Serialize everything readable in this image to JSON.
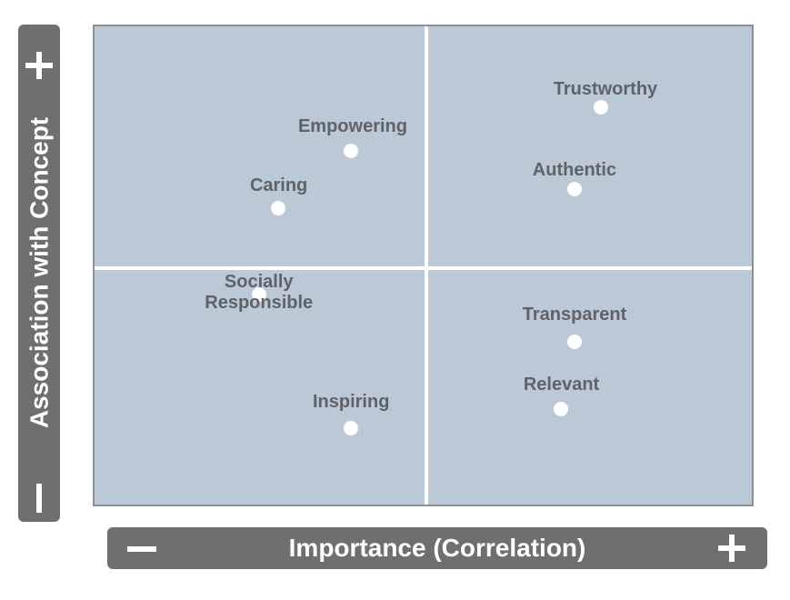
{
  "chart_data": {
    "type": "scatter",
    "title": "",
    "xlabel": "Importance (Correlation)",
    "ylabel": "Association with Concept",
    "xlim": [
      0,
      1
    ],
    "ylim": [
      0,
      1
    ],
    "quadrant_split": {
      "x": 0.5,
      "y": 0.5
    },
    "axis_markers": {
      "low": "-",
      "high": "+"
    },
    "points": [
      {
        "label": "Trustworthy",
        "x": 0.77,
        "y": 0.83
      },
      {
        "label": "Empowering",
        "x": 0.39,
        "y": 0.74
      },
      {
        "label": "Authentic",
        "x": 0.73,
        "y": 0.66
      },
      {
        "label": "Caring",
        "x": 0.28,
        "y": 0.62
      },
      {
        "label": "Socially\nResponsible",
        "x": 0.25,
        "y": 0.44
      },
      {
        "label": "Transparent",
        "x": 0.73,
        "y": 0.34
      },
      {
        "label": "Relevant",
        "x": 0.71,
        "y": 0.2
      },
      {
        "label": "Inspiring",
        "x": 0.39,
        "y": 0.16
      }
    ],
    "colors": {
      "plot_background": "#bbc8d6",
      "dividers": "#ffffff",
      "points": "#ffffff",
      "labels": "#5f6266",
      "axis_bars": "#6f6f6f"
    }
  }
}
